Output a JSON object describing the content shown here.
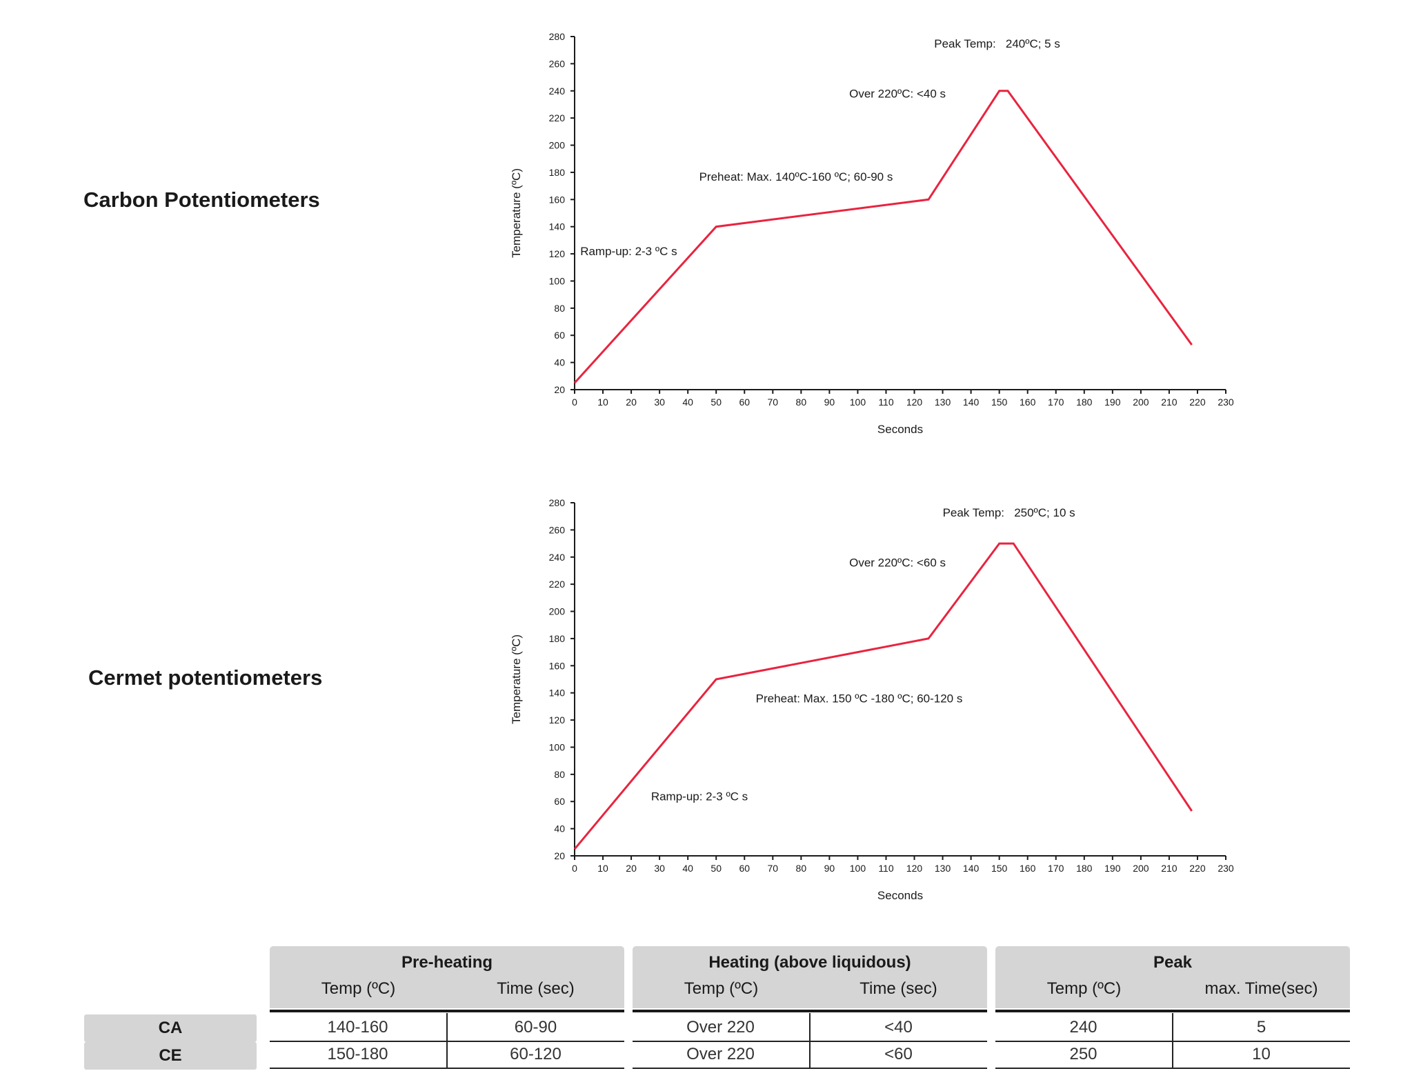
{
  "sections": [
    {
      "title": "Carbon Potentiometers"
    },
    {
      "title": "Cermet potentiometers"
    }
  ],
  "chart_data": [
    {
      "type": "line",
      "xlabel": "Seconds",
      "ylabel": "Temperature (ºC)",
      "xlim": [
        0,
        230
      ],
      "ylim": [
        20,
        280
      ],
      "xticks": [
        0,
        10,
        20,
        30,
        40,
        50,
        60,
        70,
        80,
        90,
        100,
        110,
        120,
        130,
        140,
        150,
        160,
        170,
        180,
        190,
        200,
        210,
        220,
        230
      ],
      "yticks": [
        20,
        40,
        60,
        80,
        100,
        120,
        140,
        160,
        180,
        200,
        220,
        240,
        260,
        280
      ],
      "line_color": "#e8243f",
      "series": [
        {
          "x": [
            0,
            50,
            125,
            150,
            153,
            218
          ],
          "y": [
            25,
            140,
            160,
            240,
            240,
            53
          ]
        }
      ],
      "annotations": [
        {
          "text": "Peak Temp:   240ºC; 5 s",
          "x": 127,
          "y": 275
        },
        {
          "text": "Over 220ºC: <40 s",
          "x": 97,
          "y": 238
        },
        {
          "text": "Preheat: Max. 140ºC-160 ºC; 60-90 s",
          "x": 44,
          "y": 177
        },
        {
          "text": "Ramp-up: 2-3 ºC s",
          "x": 2,
          "y": 122
        }
      ]
    },
    {
      "type": "line",
      "xlabel": "Seconds",
      "ylabel": "Temperature (ºC)",
      "xlim": [
        0,
        230
      ],
      "ylim": [
        20,
        280
      ],
      "xticks": [
        0,
        10,
        20,
        30,
        40,
        50,
        60,
        70,
        80,
        90,
        100,
        110,
        120,
        130,
        140,
        150,
        160,
        170,
        180,
        190,
        200,
        210,
        220,
        230
      ],
      "yticks": [
        20,
        40,
        60,
        80,
        100,
        120,
        140,
        160,
        180,
        200,
        220,
        240,
        260,
        280
      ],
      "line_color": "#e8243f",
      "series": [
        {
          "x": [
            0,
            50,
            125,
            150,
            155,
            218
          ],
          "y": [
            25,
            150,
            180,
            250,
            250,
            53
          ]
        }
      ],
      "annotations": [
        {
          "text": "Peak Temp:   250ºC; 10 s",
          "x": 130,
          "y": 273
        },
        {
          "text": "Over 220ºC: <60 s",
          "x": 97,
          "y": 236
        },
        {
          "text": "Preheat: Max. 150 ºC -180 ºC; 60-120 s",
          "x": 64,
          "y": 136
        },
        {
          "text": "Ramp-up: 2-3 ºC s",
          "x": 27,
          "y": 64
        }
      ]
    }
  ],
  "table": {
    "groups": [
      {
        "title": "Pre-heating",
        "cols": [
          "Temp (ºC)",
          "Time (sec)"
        ]
      },
      {
        "title": "Heating (above liquidous)",
        "cols": [
          "Temp (ºC)",
          "Time (sec)"
        ]
      },
      {
        "title": "Peak",
        "cols": [
          "Temp (ºC)",
          "max. Time(sec)"
        ]
      }
    ],
    "rows": [
      {
        "label": "CA",
        "cells": [
          "140-160",
          "60-90",
          "Over 220",
          "<40",
          "240",
          "5"
        ]
      },
      {
        "label": "CE",
        "cells": [
          "150-180",
          "60-120",
          "Over 220",
          "<60",
          "250",
          "10"
        ]
      }
    ]
  }
}
